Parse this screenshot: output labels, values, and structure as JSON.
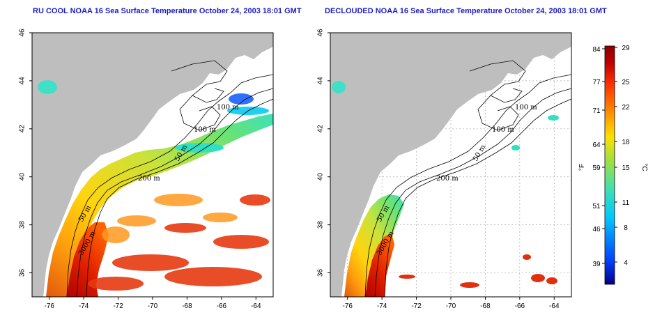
{
  "panels": [
    {
      "id": "left",
      "title": "RU COOL NOAA 16 Sea Surface Temperature October 24, 2003 18:01 GMT",
      "contour_labels": [
        "100 m",
        "100 m",
        "50 m",
        "200 m",
        "50 m",
        "3000 m"
      ],
      "show_grid": false
    },
    {
      "id": "right",
      "title": "DECLOUDED NOAA 16 Sea Surface Temperature October 24, 2003 18:01 GMT",
      "contour_labels": [
        "100 m",
        "100 m",
        "50 m",
        "200 m",
        "50 m",
        "3000 m"
      ],
      "show_grid": true
    }
  ],
  "axes": {
    "longitude_ticks": [
      "-76",
      "-74",
      "-72",
      "-70",
      "-68",
      "-66",
      "-64"
    ],
    "latitude_ticks": [
      "46",
      "44",
      "42",
      "40",
      "38",
      "36"
    ],
    "lon_range": [
      -77.0,
      -63.0
    ],
    "lat_range": [
      35.0,
      46.0
    ]
  },
  "colorbar": {
    "unit_left": "°F",
    "unit_right": "°C",
    "fahrenheit_ticks": [
      "84",
      "77",
      "71",
      "64",
      "59",
      "51",
      "46",
      "39"
    ],
    "celsius_ticks": [
      "29",
      "25",
      "22",
      "18",
      "15",
      "11",
      "8",
      "4"
    ],
    "colors": [
      "#00008b",
      "#0040ff",
      "#00c8ff",
      "#40e0b0",
      "#a0e040",
      "#ffe000",
      "#ff9000",
      "#ff3000",
      "#c00000",
      "#8b0000"
    ]
  },
  "colors": {
    "land": "#bebebe",
    "ocean_no_data": "#ffffff",
    "title": "#1c1cc8",
    "grid": "#aaaaaa"
  }
}
